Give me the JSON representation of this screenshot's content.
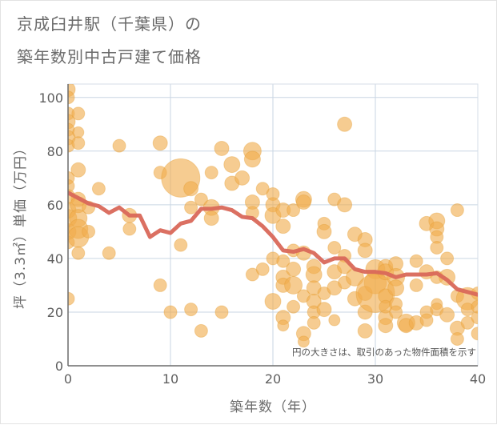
{
  "title_line1": "京成臼井駅（千葉県）の",
  "title_line2": "築年数別中古戸建て価格",
  "chart_data": {
    "type": "scatter",
    "xlabel": "築年数（年）",
    "ylabel": "坪（3.3㎡）単価（万円）",
    "xlim": [
      0,
      40
    ],
    "ylim": [
      0,
      105
    ],
    "xticks": [
      0,
      10,
      20,
      30,
      40
    ],
    "yticks": [
      0,
      20,
      40,
      60,
      80,
      100
    ],
    "grid": true,
    "annotation": "円の大きさは、取引のあった物件面積を示す",
    "colors": {
      "bubble": "#f0ad4e",
      "bubble_edge": "#e39a2f",
      "line": "#d9685a",
      "grid": "#c9d6e3",
      "axis": "#6c6c6c"
    },
    "series": [
      {
        "kind": "bubble",
        "points": [
          {
            "x": 0,
            "y": 103,
            "s": 9
          },
          {
            "x": 0,
            "y": 100,
            "s": 8
          },
          {
            "x": 0,
            "y": 94,
            "s": 8
          },
          {
            "x": 0,
            "y": 91,
            "s": 9
          },
          {
            "x": 0,
            "y": 88,
            "s": 8
          },
          {
            "x": 0,
            "y": 85,
            "s": 9
          },
          {
            "x": 0,
            "y": 82,
            "s": 8
          },
          {
            "x": 0,
            "y": 70,
            "s": 8
          },
          {
            "x": 0,
            "y": 67,
            "s": 8
          },
          {
            "x": 0,
            "y": 63,
            "s": 9
          },
          {
            "x": 0,
            "y": 58,
            "s": 10
          },
          {
            "x": 0,
            "y": 55,
            "s": 11
          },
          {
            "x": 0,
            "y": 50,
            "s": 10
          },
          {
            "x": 0,
            "y": 46,
            "s": 8
          },
          {
            "x": 0,
            "y": 25,
            "s": 8
          },
          {
            "x": 1,
            "y": 94,
            "s": 8
          },
          {
            "x": 1,
            "y": 87,
            "s": 7
          },
          {
            "x": 1,
            "y": 83,
            "s": 8
          },
          {
            "x": 1,
            "y": 73,
            "s": 9
          },
          {
            "x": 1,
            "y": 62,
            "s": 9
          },
          {
            "x": 1,
            "y": 60,
            "s": 10
          },
          {
            "x": 1,
            "y": 55,
            "s": 11
          },
          {
            "x": 1,
            "y": 51,
            "s": 12
          },
          {
            "x": 1,
            "y": 48,
            "s": 13
          },
          {
            "x": 1,
            "y": 42,
            "s": 8
          },
          {
            "x": 2,
            "y": 59,
            "s": 8
          },
          {
            "x": 2,
            "y": 50,
            "s": 8
          },
          {
            "x": 3,
            "y": 66,
            "s": 8
          },
          {
            "x": 4,
            "y": 42,
            "s": 8
          },
          {
            "x": 5,
            "y": 82,
            "s": 8
          },
          {
            "x": 6,
            "y": 56,
            "s": 9
          },
          {
            "x": 6,
            "y": 51,
            "s": 8
          },
          {
            "x": 9,
            "y": 83,
            "s": 9
          },
          {
            "x": 9,
            "y": 72,
            "s": 8
          },
          {
            "x": 9,
            "y": 30,
            "s": 8
          },
          {
            "x": 10,
            "y": 20,
            "s": 8
          },
          {
            "x": 11,
            "y": 70,
            "s": 24
          },
          {
            "x": 11,
            "y": 45,
            "s": 8
          },
          {
            "x": 12,
            "y": 66,
            "s": 9
          },
          {
            "x": 12,
            "y": 59,
            "s": 8
          },
          {
            "x": 12,
            "y": 21,
            "s": 8
          },
          {
            "x": 13,
            "y": 62,
            "s": 8
          },
          {
            "x": 13,
            "y": 13,
            "s": 8
          },
          {
            "x": 14,
            "y": 72,
            "s": 8
          },
          {
            "x": 14,
            "y": 59,
            "s": 10
          },
          {
            "x": 14,
            "y": 55,
            "s": 9
          },
          {
            "x": 15,
            "y": 81,
            "s": 9
          },
          {
            "x": 15,
            "y": 20,
            "s": 8
          },
          {
            "x": 16,
            "y": 75,
            "s": 10
          },
          {
            "x": 16,
            "y": 68,
            "s": 9
          },
          {
            "x": 17,
            "y": 70,
            "s": 9
          },
          {
            "x": 18,
            "y": 80,
            "s": 11
          },
          {
            "x": 18,
            "y": 77,
            "s": 10
          },
          {
            "x": 18,
            "y": 61,
            "s": 9
          },
          {
            "x": 18,
            "y": 57,
            "s": 8
          },
          {
            "x": 18,
            "y": 34,
            "s": 8
          },
          {
            "x": 19,
            "y": 66,
            "s": 8
          },
          {
            "x": 19,
            "y": 36,
            "s": 8
          },
          {
            "x": 20,
            "y": 64,
            "s": 8
          },
          {
            "x": 20,
            "y": 60,
            "s": 9
          },
          {
            "x": 20,
            "y": 56,
            "s": 10
          },
          {
            "x": 20,
            "y": 40,
            "s": 8
          },
          {
            "x": 20,
            "y": 24,
            "s": 10
          },
          {
            "x": 21,
            "y": 58,
            "s": 9
          },
          {
            "x": 21,
            "y": 52,
            "s": 9
          },
          {
            "x": 21,
            "y": 39,
            "s": 8
          },
          {
            "x": 21,
            "y": 33,
            "s": 9
          },
          {
            "x": 21,
            "y": 30,
            "s": 9
          },
          {
            "x": 21,
            "y": 18,
            "s": 9
          },
          {
            "x": 21,
            "y": 15,
            "s": 7
          },
          {
            "x": 22,
            "y": 58,
            "s": 8
          },
          {
            "x": 22,
            "y": 43,
            "s": 8
          },
          {
            "x": 22,
            "y": 36,
            "s": 9
          },
          {
            "x": 22,
            "y": 30,
            "s": 11
          },
          {
            "x": 22,
            "y": 22,
            "s": 8
          },
          {
            "x": 23,
            "y": 62,
            "s": 10
          },
          {
            "x": 23,
            "y": 61,
            "s": 9
          },
          {
            "x": 23,
            "y": 42,
            "s": 9
          },
          {
            "x": 23,
            "y": 26,
            "s": 8
          },
          {
            "x": 23,
            "y": 12,
            "s": 9
          },
          {
            "x": 23,
            "y": 9,
            "s": 7
          },
          {
            "x": 24,
            "y": 37,
            "s": 9
          },
          {
            "x": 24,
            "y": 34,
            "s": 10
          },
          {
            "x": 24,
            "y": 29,
            "s": 9
          },
          {
            "x": 24,
            "y": 24,
            "s": 9
          },
          {
            "x": 24,
            "y": 20,
            "s": 8
          },
          {
            "x": 24,
            "y": 16,
            "s": 8
          },
          {
            "x": 25,
            "y": 53,
            "s": 8
          },
          {
            "x": 25,
            "y": 50,
            "s": 9
          },
          {
            "x": 25,
            "y": 27,
            "s": 8
          },
          {
            "x": 25,
            "y": 21,
            "s": 9
          },
          {
            "x": 26,
            "y": 62,
            "s": 8
          },
          {
            "x": 26,
            "y": 44,
            "s": 8
          },
          {
            "x": 26,
            "y": 35,
            "s": 9
          },
          {
            "x": 26,
            "y": 29,
            "s": 9
          },
          {
            "x": 26,
            "y": 17,
            "s": 7
          },
          {
            "x": 27,
            "y": 90,
            "s": 9
          },
          {
            "x": 27,
            "y": 60,
            "s": 9
          },
          {
            "x": 27,
            "y": 41,
            "s": 8
          },
          {
            "x": 27,
            "y": 37,
            "s": 9
          },
          {
            "x": 27,
            "y": 31,
            "s": 8
          },
          {
            "x": 28,
            "y": 49,
            "s": 9
          },
          {
            "x": 28,
            "y": 33,
            "s": 11
          },
          {
            "x": 28,
            "y": 25,
            "s": 9
          },
          {
            "x": 29,
            "y": 47,
            "s": 9
          },
          {
            "x": 29,
            "y": 43,
            "s": 9
          },
          {
            "x": 29,
            "y": 27,
            "s": 9
          },
          {
            "x": 29,
            "y": 20,
            "s": 9
          },
          {
            "x": 29,
            "y": 13,
            "s": 9
          },
          {
            "x": 30,
            "y": 36,
            "s": 12
          },
          {
            "x": 30,
            "y": 31,
            "s": 14
          },
          {
            "x": 30,
            "y": 27,
            "s": 24
          },
          {
            "x": 31,
            "y": 37,
            "s": 9
          },
          {
            "x": 31,
            "y": 35,
            "s": 10
          },
          {
            "x": 31,
            "y": 26,
            "s": 9
          },
          {
            "x": 31,
            "y": 22,
            "s": 8
          },
          {
            "x": 31,
            "y": 18,
            "s": 9
          },
          {
            "x": 31,
            "y": 15,
            "s": 9
          },
          {
            "x": 32,
            "y": 38,
            "s": 9
          },
          {
            "x": 32,
            "y": 33,
            "s": 11
          },
          {
            "x": 32,
            "y": 29,
            "s": 10
          },
          {
            "x": 32,
            "y": 23,
            "s": 8
          },
          {
            "x": 32,
            "y": 20,
            "s": 8
          },
          {
            "x": 33,
            "y": 16,
            "s": 11
          },
          {
            "x": 33,
            "y": 15,
            "s": 9
          },
          {
            "x": 34,
            "y": 39,
            "s": 8
          },
          {
            "x": 34,
            "y": 30,
            "s": 8
          },
          {
            "x": 34,
            "y": 16,
            "s": 9
          },
          {
            "x": 35,
            "y": 53,
            "s": 9
          },
          {
            "x": 35,
            "y": 35,
            "s": 9
          },
          {
            "x": 35,
            "y": 20,
            "s": 8
          },
          {
            "x": 35,
            "y": 17,
            "s": 8
          },
          {
            "x": 36,
            "y": 54,
            "s": 10
          },
          {
            "x": 36,
            "y": 51,
            "s": 9
          },
          {
            "x": 36,
            "y": 48,
            "s": 8
          },
          {
            "x": 36,
            "y": 44,
            "s": 8
          },
          {
            "x": 36,
            "y": 33,
            "s": 8
          },
          {
            "x": 36,
            "y": 23,
            "s": 7
          },
          {
            "x": 36,
            "y": 21,
            "s": 8
          },
          {
            "x": 37,
            "y": 40,
            "s": 8
          },
          {
            "x": 37,
            "y": 33,
            "s": 10
          },
          {
            "x": 37,
            "y": 19,
            "s": 9
          },
          {
            "x": 38,
            "y": 58,
            "s": 8
          },
          {
            "x": 38,
            "y": 26,
            "s": 8
          },
          {
            "x": 38,
            "y": 14,
            "s": 9
          },
          {
            "x": 38,
            "y": 10,
            "s": 8
          },
          {
            "x": 39,
            "y": 25,
            "s": 14
          },
          {
            "x": 39,
            "y": 16,
            "s": 8
          },
          {
            "x": 39,
            "y": 21,
            "s": 8
          },
          {
            "x": 40,
            "y": 18,
            "s": 8
          },
          {
            "x": 40,
            "y": 12,
            "s": 8
          },
          {
            "x": 40,
            "y": 22,
            "s": 8
          },
          {
            "x": 40,
            "y": 27,
            "s": 8
          }
        ]
      },
      {
        "kind": "line",
        "x": [
          0,
          1,
          2,
          3,
          4,
          5,
          6,
          7,
          8,
          9,
          10,
          11,
          12,
          13,
          14,
          15,
          16,
          17,
          18,
          19,
          20,
          21,
          22,
          23,
          24,
          25,
          26,
          27,
          28,
          29,
          30,
          31,
          32,
          33,
          34,
          35,
          36,
          37,
          38,
          39,
          40
        ],
        "values": [
          64.5,
          62.5,
          60.5,
          59.5,
          57,
          59,
          56,
          56,
          48,
          50.5,
          49.5,
          53,
          54,
          58.5,
          58.5,
          59,
          58,
          55.5,
          55,
          52,
          48,
          43,
          42.5,
          43.5,
          42,
          38.5,
          40,
          40,
          36,
          35,
          35,
          34.5,
          33,
          34,
          34,
          34,
          34.5,
          32,
          28.5,
          27.5,
          26.5
        ]
      }
    ]
  }
}
